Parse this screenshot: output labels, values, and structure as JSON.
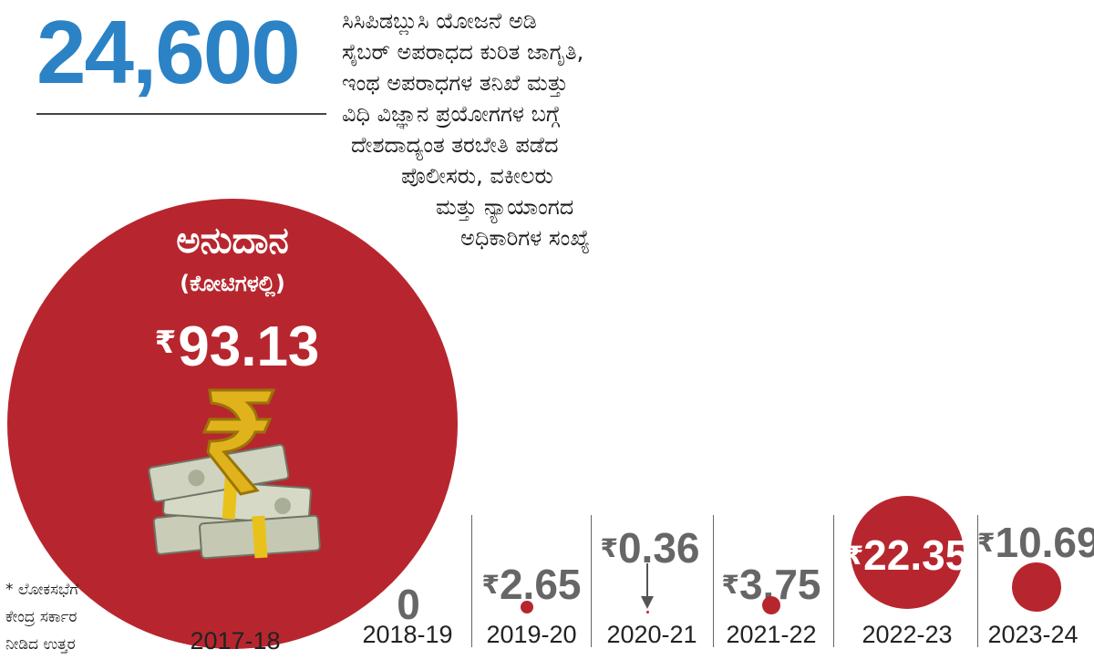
{
  "headline": {
    "number": "24,600",
    "description_lines": [
      "ಸಿಸಿಪಿಡಬ್ಲುಸಿ ಯೋಜನೆ ಅಡಿ",
      "ಸೈಬರ್ ಅಪರಾಧದ ಕುರಿತ ಜಾಗೃತಿ,",
      "ಇಂಥ ಅಪರಾಧಗಳ ತನಿಖೆ ಮತ್ತು",
      "ವಿಧಿ ವಿಜ್ಞಾನ ಪ್ರಯೋಗಗಳ ಬಗ್ಗೆ",
      "ದೇಶದಾದ್ಯಂತ ತರಬೇತಿ ಪಡೆದ",
      "ಪೊಲೀಸರು, ವಕೀಲರು",
      "ಮತ್ತು ನ್ಯಾಯಾಂಗದ",
      "ಅಧಿಕಾರಿಗಳ ಸಂಖ್ಯೆ"
    ]
  },
  "grant": {
    "title": "ಅನುದಾನ",
    "subtitle": "(ಕೋಟಿಗಳಲ್ಲಿ)"
  },
  "currency_symbol": "₹",
  "footnote_lines": [
    "* ಲೋಕಸಭೆಗೆ",
    "ಕೇಂದ್ರ ಸರ್ಕಾರ",
    "ನೀಡಿದ ಉತ್ತರ"
  ],
  "colors": {
    "accent_blue": "#2b83c6",
    "circle_red": "#b7262e",
    "value_grey": "#666666"
  },
  "icon": "rupee-money-bundle-icon",
  "chart_data": {
    "type": "bubble",
    "title": "ಅನುದಾನ",
    "subtitle": "(ಕೋಟಿಗಳಲ್ಲಿ)",
    "categories": [
      "2017-18",
      "2018-19",
      "2019-20",
      "2020-21",
      "2021-22",
      "2022-23",
      "2023-24"
    ],
    "values": [
      93.13,
      0,
      2.65,
      0.36,
      3.75,
      22.35,
      10.69
    ],
    "value_labels": [
      "93.13",
      "0",
      "2.65",
      "0.36",
      "3.75",
      "22.35",
      "10.69"
    ]
  }
}
